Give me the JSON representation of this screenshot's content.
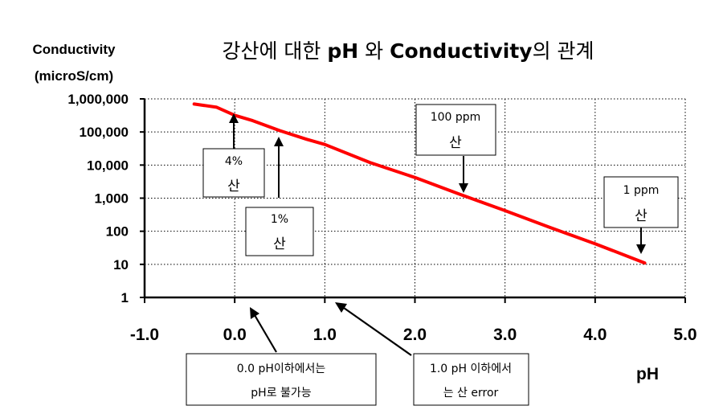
{
  "chart_data": {
    "type": "line",
    "title_parts": {
      "prefix": "강산에 대한 ",
      "ph": "pH",
      "mid": " 와 ",
      "conductivity": "Conductivity",
      "suffix": "의 관계"
    },
    "ylabel_line1": "Conductivity",
    "ylabel_line2": "(microS/cm)",
    "xlabel": "pH",
    "x_ticks": [
      "-1.0",
      "0.0",
      "1.0",
      "2.0",
      "3.0",
      "4.0",
      "5.0"
    ],
    "y_ticks": [
      "1",
      "10",
      "100",
      "1,000",
      "10,000",
      "100,000",
      "1,000,000"
    ],
    "xlim": [
      -1.0,
      5.0
    ],
    "ylim": [
      1,
      1000000
    ],
    "y_scale": "log",
    "grid": true,
    "series": [
      {
        "color": "#ff0000",
        "points": [
          [
            -0.45,
            700000
          ],
          [
            -0.2,
            560000
          ],
          [
            0.0,
            320000
          ],
          [
            0.2,
            220000
          ],
          [
            0.5,
            110000
          ],
          [
            0.8,
            60000
          ],
          [
            1.0,
            42000
          ],
          [
            1.5,
            12000
          ],
          [
            2.0,
            4200
          ],
          [
            2.5,
            1300
          ],
          [
            3.0,
            420
          ],
          [
            3.5,
            130
          ],
          [
            4.0,
            42
          ],
          [
            4.55,
            11
          ]
        ]
      }
    ],
    "annotations": [
      {
        "line1": "4%",
        "line2": "산"
      },
      {
        "line1": "1%",
        "line2": "산"
      },
      {
        "line1": "100 ppm",
        "line2": "산"
      },
      {
        "line1": "1 ppm",
        "line2": "산"
      },
      {
        "line1": "0.0 pH이하에서는",
        "line2": "pH로 불가능"
      },
      {
        "line1": "1.0 pH 이하에서",
        "line2": "는 산 error"
      }
    ]
  }
}
